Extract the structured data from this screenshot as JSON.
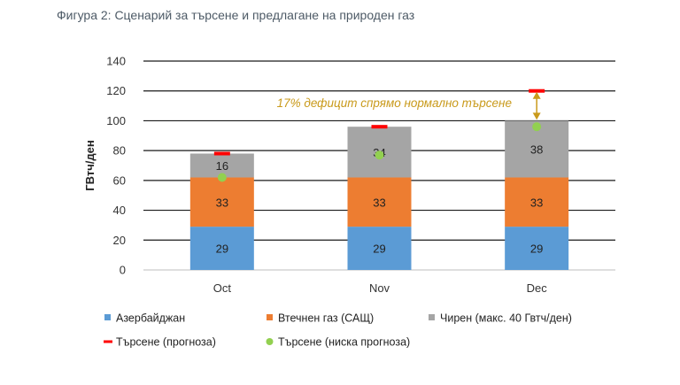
{
  "figure_title": "Фигура 2: Сценарий за търсене и предлагане на природен газ",
  "chart_data": {
    "type": "bar",
    "stacked": true,
    "categories": [
      "Oct",
      "Nov",
      "Dec"
    ],
    "series": [
      {
        "name": "Азербайджан",
        "values": [
          29,
          29,
          29
        ],
        "color": "#5b9bd5"
      },
      {
        "name": "Втечнен газ (САЩ)",
        "values": [
          33,
          33,
          33
        ],
        "color": "#ed7d31"
      },
      {
        "name": "Чирен (макс. 40 Гвтч/ден)",
        "values": [
          16,
          34,
          38
        ],
        "color": "#a5a5a5"
      }
    ],
    "markers": [
      {
        "name": "Търсене (прогноза)",
        "values": [
          78,
          96,
          120
        ],
        "color": "#ff0000",
        "shape": "dash"
      },
      {
        "name": "Търсене (ниска прогноза)",
        "values": [
          62,
          77,
          96
        ],
        "color": "#92d050",
        "shape": "dot"
      }
    ],
    "ylabel": "ГВтч/ден",
    "ylim": [
      0,
      140
    ],
    "yticks": [
      0,
      20,
      40,
      60,
      80,
      100,
      120,
      140
    ],
    "grid": true,
    "legend_position": "bottom",
    "annotation": {
      "text": "17% дефицит спрямо нормално търсене",
      "category": "Dec",
      "from": 100,
      "to": 120,
      "color": "#c99a1b"
    }
  }
}
